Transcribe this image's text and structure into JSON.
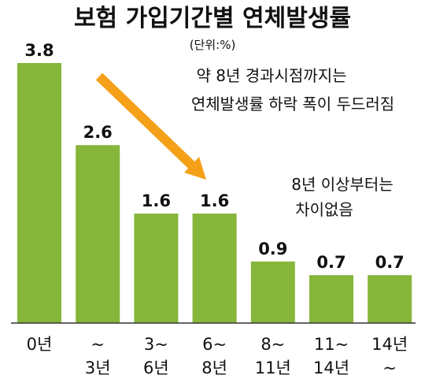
{
  "colors": {
    "bar": "#86b63a",
    "arrow": "#f5a019",
    "text": "#111111",
    "axis": "#333333"
  },
  "chart_data": {
    "type": "bar",
    "title": "보험 가입기간별 연체발생률",
    "unit": "(단위:%)",
    "categories": [
      [
        "0년"
      ],
      [
        "~",
        "3년"
      ],
      [
        "3~",
        "6년"
      ],
      [
        "6~",
        "8년"
      ],
      [
        "8~",
        "11년"
      ],
      [
        "11~",
        "14년"
      ],
      [
        "14년",
        "~"
      ]
    ],
    "values": [
      3.8,
      2.6,
      1.6,
      1.6,
      0.9,
      0.7,
      0.7
    ],
    "value_labels": [
      "3.8",
      "2.6",
      "1.6",
      "1.6",
      "0.9",
      "0.7",
      "0.7"
    ],
    "ylim": [
      0,
      3.8
    ],
    "grid": false,
    "annotations": [
      [
        "약 8년 경과시점까지는",
        "연체발생률 하락 폭이 두드러짐"
      ],
      [
        "8년 이상부터는",
        "차이없음"
      ]
    ]
  }
}
